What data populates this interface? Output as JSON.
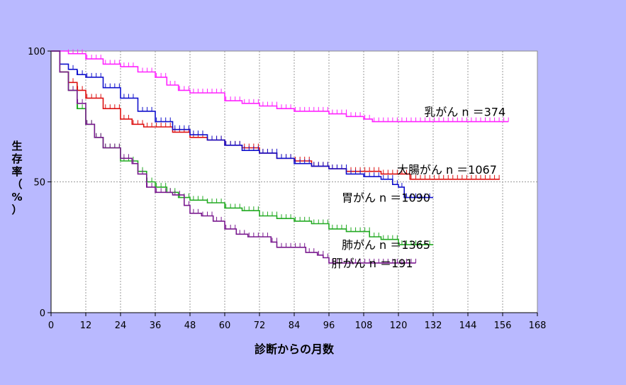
{
  "chart_data": {
    "type": "line",
    "title": "",
    "xlabel": "診断からの月数",
    "ylabel": "生存率（%）",
    "xlim": [
      0,
      168
    ],
    "ylim": [
      0,
      100
    ],
    "x_ticks": [
      0,
      12,
      24,
      36,
      48,
      60,
      72,
      84,
      96,
      108,
      120,
      132,
      144,
      156,
      168
    ],
    "y_ticks": [
      0,
      50,
      100
    ],
    "grid": {
      "vertical": true,
      "horizontal_at": [
        50
      ]
    },
    "legend": "series labels at line ends",
    "series": [
      {
        "name": "乳がん",
        "label": "乳がん n ＝374",
        "color": "#ff22ff",
        "points": [
          [
            0,
            100
          ],
          [
            6,
            99
          ],
          [
            12,
            97
          ],
          [
            18,
            95
          ],
          [
            24,
            94
          ],
          [
            30,
            92
          ],
          [
            36,
            90
          ],
          [
            40,
            87
          ],
          [
            44,
            85
          ],
          [
            48,
            84
          ],
          [
            54,
            84
          ],
          [
            60,
            81
          ],
          [
            66,
            80
          ],
          [
            72,
            79
          ],
          [
            78,
            78
          ],
          [
            84,
            77
          ],
          [
            90,
            77
          ],
          [
            96,
            76
          ],
          [
            102,
            75
          ],
          [
            108,
            74
          ],
          [
            111,
            73
          ],
          [
            120,
            73
          ],
          [
            132,
            73
          ],
          [
            144,
            73
          ],
          [
            158,
            73
          ]
        ]
      },
      {
        "name": "大腸がん",
        "label": "大腸がん n ＝1067",
        "color": "#dd1111",
        "points": [
          [
            0,
            100
          ],
          [
            3,
            92
          ],
          [
            6,
            88
          ],
          [
            9,
            85
          ],
          [
            12,
            82
          ],
          [
            18,
            78
          ],
          [
            24,
            74
          ],
          [
            28,
            72
          ],
          [
            32,
            71
          ],
          [
            36,
            71
          ],
          [
            42,
            69
          ],
          [
            48,
            67
          ],
          [
            54,
            66
          ],
          [
            60,
            64
          ],
          [
            66,
            63
          ],
          [
            72,
            61
          ],
          [
            78,
            59
          ],
          [
            84,
            58
          ],
          [
            90,
            56
          ],
          [
            96,
            55
          ],
          [
            102,
            54
          ],
          [
            108,
            54
          ],
          [
            114,
            53
          ],
          [
            120,
            53
          ],
          [
            124,
            51
          ],
          [
            132,
            51
          ],
          [
            144,
            51
          ],
          [
            155,
            51
          ]
        ]
      },
      {
        "name": "胃がん",
        "label": "胃がん n ＝1090",
        "color": "#1111cc",
        "points": [
          [
            0,
            100
          ],
          [
            3,
            95
          ],
          [
            6,
            93
          ],
          [
            9,
            91
          ],
          [
            12,
            90
          ],
          [
            18,
            86
          ],
          [
            24,
            82
          ],
          [
            30,
            77
          ],
          [
            36,
            73
          ],
          [
            42,
            70
          ],
          [
            48,
            68
          ],
          [
            54,
            66
          ],
          [
            60,
            64
          ],
          [
            66,
            62
          ],
          [
            72,
            61
          ],
          [
            78,
            59
          ],
          [
            84,
            57
          ],
          [
            90,
            56
          ],
          [
            96,
            55
          ],
          [
            102,
            53
          ],
          [
            108,
            52
          ],
          [
            114,
            51
          ],
          [
            118,
            49
          ],
          [
            120,
            48
          ],
          [
            122,
            44
          ],
          [
            132,
            44
          ]
        ]
      },
      {
        "name": "肺がん",
        "label": "肺がん n ＝1365",
        "color": "#22aa22",
        "points": [
          [
            0,
            100
          ],
          [
            3,
            92
          ],
          [
            6,
            85
          ],
          [
            9,
            78
          ],
          [
            12,
            72
          ],
          [
            15,
            67
          ],
          [
            18,
            63
          ],
          [
            24,
            58
          ],
          [
            30,
            54
          ],
          [
            33,
            50
          ],
          [
            36,
            48
          ],
          [
            40,
            46
          ],
          [
            44,
            44
          ],
          [
            48,
            43
          ],
          [
            54,
            42
          ],
          [
            60,
            40
          ],
          [
            66,
            39
          ],
          [
            72,
            37
          ],
          [
            78,
            36
          ],
          [
            84,
            35
          ],
          [
            90,
            34
          ],
          [
            96,
            32
          ],
          [
            102,
            31
          ],
          [
            108,
            31
          ],
          [
            110,
            29
          ],
          [
            114,
            28
          ],
          [
            120,
            26
          ],
          [
            132,
            26
          ]
        ]
      },
      {
        "name": "肝がん",
        "label": "肝がん n ＝191",
        "color": "#7a1a8f",
        "points": [
          [
            0,
            100
          ],
          [
            3,
            92
          ],
          [
            6,
            85
          ],
          [
            9,
            80
          ],
          [
            12,
            72
          ],
          [
            15,
            67
          ],
          [
            18,
            63
          ],
          [
            24,
            59
          ],
          [
            28,
            57
          ],
          [
            30,
            53
          ],
          [
            33,
            48
          ],
          [
            36,
            46
          ],
          [
            42,
            45
          ],
          [
            46,
            41
          ],
          [
            48,
            38
          ],
          [
            52,
            37
          ],
          [
            56,
            35
          ],
          [
            60,
            32
          ],
          [
            64,
            30
          ],
          [
            68,
            29
          ],
          [
            72,
            29
          ],
          [
            76,
            27
          ],
          [
            78,
            25
          ],
          [
            84,
            25
          ],
          [
            88,
            23
          ],
          [
            92,
            22
          ],
          [
            94,
            21
          ],
          [
            96,
            19
          ],
          [
            102,
            19
          ],
          [
            108,
            19
          ],
          [
            120,
            19
          ],
          [
            126,
            19
          ]
        ]
      }
    ]
  }
}
